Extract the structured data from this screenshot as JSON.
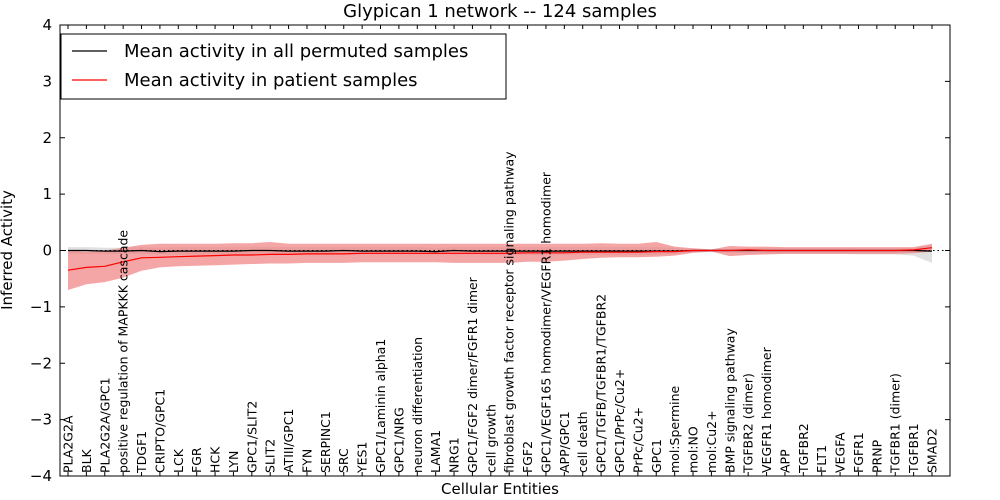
{
  "chart_data": {
    "type": "line",
    "title": "Glypican 1 network -- 124 samples",
    "xlabel": "Cellular Entities",
    "ylabel": "Inferred Activity",
    "ylim": [
      -4,
      4
    ],
    "yticks": [
      "−4",
      "−3",
      "−2",
      "−1",
      "0",
      "1",
      "2",
      "3",
      "4"
    ],
    "legend_position": "top-left",
    "categories": [
      "PLA2G2A",
      "BLK",
      "PLA2G2A/GPC1",
      "positive regulation of MAPKKK cascade",
      "TDGF1",
      "CRIPTO/GPC1",
      "LCK",
      "FGR",
      "HCK",
      "LYN",
      "GPC1/SLIT2",
      "SLIT2",
      "ATIII/GPC1",
      "FYN",
      "SERPINC1",
      "SRC",
      "YES1",
      "GPC1/Laminin alpha1",
      "GPC1/NRG",
      "neuron differentiation",
      "LAMA1",
      "NRG1",
      "GPC1/FGF2 dimer/FGFR1 dimer",
      "cell growth",
      "fibroblast growth factor receptor signaling pathway",
      "FGF2",
      "GPC1/VEGF165 homodimer/VEGFR1 homodimer",
      "APP/GPC1",
      "cell death",
      "GPC1/TGFB/TGFBR1/TGFBR2",
      "GPC1/PrPc/Cu2+",
      "PrPc/Cu2+",
      "GPC1",
      "mol:Spermine",
      "mol:NO",
      "mol:Cu2+",
      "BMP signaling pathway",
      "TGFBR2 (dimer)",
      "VEGFR1 homodimer",
      "APP",
      "TGFBR2",
      "FLT1",
      "VEGFA",
      "FGFR1",
      "PRNP",
      "TGFBR1 (dimer)",
      "TGFBR1",
      "SMAD2"
    ],
    "series": [
      {
        "name": "Mean activity in all permuted samples",
        "color": "#000000",
        "band_color": "#bbbbbb",
        "values": [
          0.0,
          0.0,
          -0.01,
          -0.01,
          0.0,
          -0.02,
          -0.01,
          -0.01,
          -0.01,
          -0.01,
          0.0,
          0.0,
          -0.01,
          -0.01,
          -0.01,
          0.0,
          -0.01,
          -0.01,
          -0.01,
          -0.01,
          -0.02,
          0.0,
          -0.01,
          -0.01,
          -0.01,
          -0.01,
          -0.01,
          -0.01,
          -0.01,
          -0.01,
          -0.01,
          -0.01,
          -0.01,
          -0.01,
          0.0,
          0.0,
          0.0,
          0.0,
          0.0,
          0.0,
          0.0,
          0.0,
          0.0,
          0.0,
          0.0,
          0.0,
          0.0,
          -0.01
        ],
        "lower": [
          -0.06,
          -0.06,
          -0.06,
          -0.06,
          -0.06,
          -0.07,
          -0.07,
          -0.07,
          -0.07,
          -0.07,
          -0.07,
          -0.07,
          -0.07,
          -0.07,
          -0.07,
          -0.07,
          -0.07,
          -0.07,
          -0.07,
          -0.07,
          -0.07,
          -0.07,
          -0.07,
          -0.08,
          -0.08,
          -0.08,
          -0.08,
          -0.08,
          -0.08,
          -0.08,
          -0.08,
          -0.08,
          -0.08,
          -0.06,
          -0.04,
          -0.02,
          -0.04,
          -0.05,
          -0.06,
          -0.06,
          -0.06,
          -0.06,
          -0.06,
          -0.07,
          -0.07,
          -0.07,
          -0.09,
          -0.22
        ],
        "upper": [
          0.06,
          0.06,
          0.05,
          0.05,
          0.06,
          0.05,
          0.06,
          0.06,
          0.06,
          0.06,
          0.07,
          0.06,
          0.06,
          0.06,
          0.06,
          0.06,
          0.06,
          0.06,
          0.06,
          0.06,
          0.05,
          0.06,
          0.06,
          0.06,
          0.06,
          0.06,
          0.06,
          0.06,
          0.06,
          0.06,
          0.06,
          0.06,
          0.06,
          0.05,
          0.03,
          0.02,
          0.03,
          0.04,
          0.05,
          0.05,
          0.05,
          0.05,
          0.05,
          0.05,
          0.05,
          0.05,
          0.05,
          0.09
        ]
      },
      {
        "name": "Mean activity in patient samples",
        "color": "#ff0000",
        "band_color": "#f08080",
        "values": [
          -0.35,
          -0.3,
          -0.28,
          -0.2,
          -0.13,
          -0.12,
          -0.11,
          -0.1,
          -0.09,
          -0.08,
          -0.08,
          -0.07,
          -0.07,
          -0.06,
          -0.06,
          -0.06,
          -0.05,
          -0.05,
          -0.05,
          -0.05,
          -0.05,
          -0.05,
          -0.05,
          -0.05,
          -0.05,
          -0.04,
          -0.04,
          -0.04,
          -0.03,
          -0.03,
          -0.03,
          -0.03,
          -0.02,
          -0.02,
          0.0,
          0.0,
          0.0,
          0.01,
          0.0,
          0.0,
          0.0,
          0.0,
          0.0,
          0.0,
          0.0,
          0.0,
          0.01,
          0.05
        ],
        "lower": [
          -0.7,
          -0.6,
          -0.56,
          -0.48,
          -0.36,
          -0.3,
          -0.28,
          -0.27,
          -0.26,
          -0.25,
          -0.24,
          -0.23,
          -0.23,
          -0.22,
          -0.22,
          -0.22,
          -0.21,
          -0.21,
          -0.21,
          -0.21,
          -0.21,
          -0.22,
          -0.22,
          -0.22,
          -0.22,
          -0.2,
          -0.2,
          -0.18,
          -0.15,
          -0.13,
          -0.12,
          -0.12,
          -0.11,
          -0.09,
          -0.04,
          -0.02,
          -0.1,
          -0.08,
          -0.07,
          -0.06,
          -0.06,
          -0.06,
          -0.06,
          -0.06,
          -0.06,
          -0.06,
          -0.05,
          -0.02
        ],
        "upper": [
          0.0,
          -0.02,
          0.0,
          0.05,
          0.1,
          0.12,
          0.12,
          0.12,
          0.12,
          0.13,
          0.13,
          0.15,
          0.12,
          0.12,
          0.12,
          0.12,
          0.12,
          0.12,
          0.12,
          0.12,
          0.12,
          0.12,
          0.12,
          0.12,
          0.12,
          0.12,
          0.12,
          0.12,
          0.12,
          0.13,
          0.12,
          0.12,
          0.15,
          0.07,
          0.04,
          0.02,
          0.08,
          0.07,
          0.07,
          0.06,
          0.06,
          0.06,
          0.06,
          0.06,
          0.06,
          0.06,
          0.06,
          0.12
        ]
      }
    ],
    "reference_line": {
      "value": 0,
      "style": "dotted"
    }
  }
}
